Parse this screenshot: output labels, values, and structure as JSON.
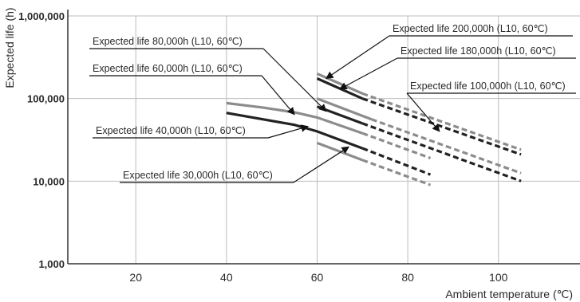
{
  "chart_data": {
    "type": "line",
    "xlabel": "Ambient temperature (℃)",
    "ylabel": "Expected life (h)",
    "y_scale": "log",
    "xlim": [
      5,
      118
    ],
    "ylim": [
      1000,
      1000000
    ],
    "x_ticks": [
      {
        "value": 20,
        "label": "20"
      },
      {
        "value": 40,
        "label": "40"
      },
      {
        "value": 60,
        "label": "60"
      },
      {
        "value": 80,
        "label": "80"
      },
      {
        "value": 100,
        "label": "100"
      }
    ],
    "y_ticks": [
      {
        "value": 1000,
        "label": "1,000"
      },
      {
        "value": 10000,
        "label": "10,000"
      },
      {
        "value": 100000,
        "label": "100,000"
      },
      {
        "value": 1000000,
        "label": "1,000,000"
      }
    ],
    "grid": true,
    "colors": {
      "gray": "#8c8c8c",
      "black": "#222222"
    },
    "series": [
      {
        "name": "Expected life 200,000h (L10, 60℃)",
        "color": "gray",
        "solid": [
          [
            60,
            200000
          ],
          [
            70,
            115000
          ]
        ],
        "dashed": [
          [
            70,
            115000
          ],
          [
            105,
            24000
          ]
        ],
        "label_anchor": "upper-right",
        "arrow_target": [
          62,
          175000
        ]
      },
      {
        "name": "Expected life 180,000h (L10, 60℃)",
        "color": "black",
        "solid": [
          [
            60,
            175000
          ],
          [
            70,
            100000
          ]
        ],
        "dashed": [
          [
            70,
            100000
          ],
          [
            105,
            21000
          ]
        ],
        "label_anchor": "upper-right",
        "arrow_target": [
          65,
          130000
        ]
      },
      {
        "name": "Expected life 100,000h (L10, 60℃)",
        "color": "gray",
        "solid": [
          [
            60,
            100000
          ],
          [
            72,
            56000
          ]
        ],
        "dashed": [
          [
            72,
            56000
          ],
          [
            105,
            12500
          ]
        ],
        "label_anchor": "right",
        "arrow_target": [
          87,
          40000
        ]
      },
      {
        "name": "Expected life 80,000h (L10, 60℃)",
        "color": "black",
        "solid": [
          [
            60,
            80000
          ],
          [
            70,
            50000
          ]
        ],
        "dashed": [
          [
            70,
            50000
          ],
          [
            105,
            10000
          ]
        ],
        "label_anchor": "left",
        "arrow_target": [
          62,
          70000
        ]
      },
      {
        "name": "Expected life 60,000h (L10, 60℃)",
        "color": "gray",
        "solid": [
          [
            40,
            88000
          ],
          [
            48,
            78000
          ],
          [
            55,
            68000
          ],
          [
            60,
            59000
          ],
          [
            70,
            38000
          ]
        ],
        "dashed": [
          [
            70,
            38000
          ],
          [
            85,
            19000
          ]
        ],
        "label_anchor": "left",
        "arrow_target": [
          55,
          64000
        ]
      },
      {
        "name": "Expected life 40,000h (L10, 60℃)",
        "color": "black",
        "solid": [
          [
            40,
            67000
          ],
          [
            55,
            48000
          ],
          [
            60,
            40000
          ],
          [
            70,
            25000
          ]
        ],
        "dashed": [
          [
            70,
            25000
          ],
          [
            85,
            12000
          ]
        ],
        "label_anchor": "left",
        "arrow_target": [
          58,
          46000
        ]
      },
      {
        "name": "Expected life 30,000h (L10, 60℃)",
        "color": "gray",
        "solid": [
          [
            60,
            29000
          ],
          [
            70,
            18000
          ]
        ],
        "dashed": [
          [
            70,
            18000
          ],
          [
            85,
            9000
          ]
        ],
        "label_anchor": "left",
        "arrow_target": [
          67,
          26000
        ]
      }
    ]
  }
}
